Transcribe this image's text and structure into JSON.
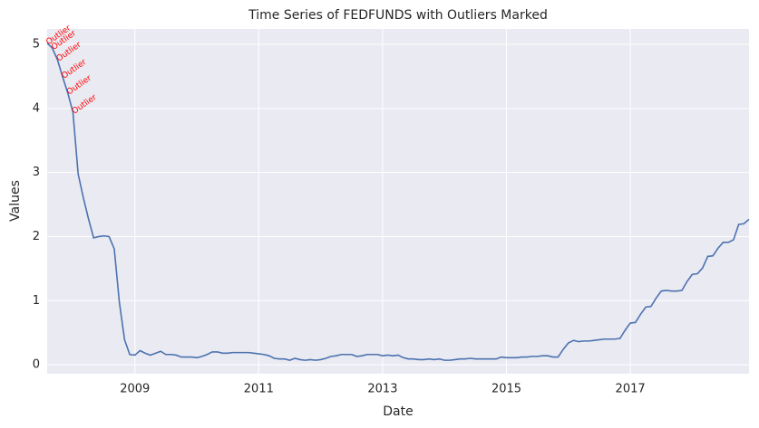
{
  "chart_data": {
    "type": "line",
    "title": "Time Series of FEDFUNDS with Outliers Marked",
    "x_label": "Date",
    "y_label": "Values",
    "x": [
      "2007-08",
      "2007-09",
      "2007-10",
      "2007-11",
      "2007-12",
      "2008-01",
      "2008-02",
      "2008-03",
      "2008-04",
      "2008-05",
      "2008-06",
      "2008-07",
      "2008-08",
      "2008-09",
      "2008-10",
      "2008-11",
      "2008-12",
      "2009-01",
      "2009-02",
      "2009-03",
      "2009-04",
      "2009-05",
      "2009-06",
      "2009-07",
      "2009-08",
      "2009-09",
      "2009-10",
      "2009-11",
      "2009-12",
      "2010-01",
      "2010-02",
      "2010-03",
      "2010-04",
      "2010-05",
      "2010-06",
      "2010-07",
      "2010-08",
      "2010-09",
      "2010-10",
      "2010-11",
      "2010-12",
      "2011-01",
      "2011-02",
      "2011-03",
      "2011-04",
      "2011-05",
      "2011-06",
      "2011-07",
      "2011-08",
      "2011-09",
      "2011-10",
      "2011-11",
      "2011-12",
      "2012-01",
      "2012-02",
      "2012-03",
      "2012-04",
      "2012-05",
      "2012-06",
      "2012-07",
      "2012-08",
      "2012-09",
      "2012-10",
      "2012-11",
      "2012-12",
      "2013-01",
      "2013-02",
      "2013-03",
      "2013-04",
      "2013-05",
      "2013-06",
      "2013-07",
      "2013-08",
      "2013-09",
      "2013-10",
      "2013-11",
      "2013-12",
      "2014-01",
      "2014-02",
      "2014-03",
      "2014-04",
      "2014-05",
      "2014-06",
      "2014-07",
      "2014-08",
      "2014-09",
      "2014-10",
      "2014-11",
      "2014-12",
      "2015-01",
      "2015-02",
      "2015-03",
      "2015-04",
      "2015-05",
      "2015-06",
      "2015-07",
      "2015-08",
      "2015-09",
      "2015-10",
      "2015-11",
      "2015-12",
      "2016-01",
      "2016-02",
      "2016-03",
      "2016-04",
      "2016-05",
      "2016-06",
      "2016-07",
      "2016-08",
      "2016-09",
      "2016-10",
      "2016-11",
      "2016-12",
      "2017-01",
      "2017-02",
      "2017-03",
      "2017-04",
      "2017-05",
      "2017-06",
      "2017-07",
      "2017-08",
      "2017-09",
      "2017-10",
      "2017-11",
      "2017-12",
      "2018-01",
      "2018-02",
      "2018-03",
      "2018-04",
      "2018-05",
      "2018-06",
      "2018-07",
      "2018-08",
      "2018-09",
      "2018-10",
      "2018-11",
      "2018-12"
    ],
    "series": [
      {
        "name": "FEDFUNDS",
        "color": "#4c72b0",
        "values": [
          5.02,
          4.94,
          4.76,
          4.49,
          4.24,
          3.94,
          2.98,
          2.61,
          2.28,
          1.98,
          2.0,
          2.01,
          2.0,
          1.81,
          0.97,
          0.39,
          0.16,
          0.15,
          0.22,
          0.18,
          0.15,
          0.18,
          0.21,
          0.16,
          0.16,
          0.15,
          0.12,
          0.12,
          0.12,
          0.11,
          0.13,
          0.16,
          0.2,
          0.2,
          0.18,
          0.18,
          0.19,
          0.19,
          0.19,
          0.19,
          0.18,
          0.17,
          0.16,
          0.14,
          0.1,
          0.09,
          0.09,
          0.07,
          0.1,
          0.08,
          0.07,
          0.08,
          0.07,
          0.08,
          0.1,
          0.13,
          0.14,
          0.16,
          0.16,
          0.16,
          0.13,
          0.14,
          0.16,
          0.16,
          0.16,
          0.14,
          0.15,
          0.14,
          0.15,
          0.11,
          0.09,
          0.09,
          0.08,
          0.08,
          0.09,
          0.08,
          0.09,
          0.07,
          0.07,
          0.08,
          0.09,
          0.09,
          0.1,
          0.09,
          0.09,
          0.09,
          0.09,
          0.09,
          0.12,
          0.11,
          0.11,
          0.11,
          0.12,
          0.12,
          0.13,
          0.13,
          0.14,
          0.14,
          0.12,
          0.12,
          0.24,
          0.34,
          0.38,
          0.36,
          0.37,
          0.37,
          0.38,
          0.39,
          0.4,
          0.4,
          0.4,
          0.41,
          0.54,
          0.65,
          0.66,
          0.79,
          0.9,
          0.91,
          1.04,
          1.15,
          1.16,
          1.15,
          1.15,
          1.16,
          1.3,
          1.41,
          1.42,
          1.51,
          1.69,
          1.7,
          1.82,
          1.91,
          1.91,
          1.95,
          2.19,
          2.2,
          2.27
        ]
      }
    ],
    "annotations": [
      {
        "text": "Outlier",
        "x": "2007-08",
        "y": 5.02
      },
      {
        "text": "Outlier",
        "x": "2007-09",
        "y": 4.94
      },
      {
        "text": "Outlier",
        "x": "2007-10",
        "y": 4.76
      },
      {
        "text": "Outlier",
        "x": "2007-11",
        "y": 4.49
      },
      {
        "text": "Outlier",
        "x": "2007-12",
        "y": 4.24
      },
      {
        "text": "Outlier",
        "x": "2008-01",
        "y": 3.94
      }
    ],
    "annotation_color": "red",
    "xlim": [
      "2007-08",
      "2018-12"
    ],
    "xticks": [
      {
        "value": "2009-01",
        "label": "2009"
      },
      {
        "value": "2011-01",
        "label": "2011"
      },
      {
        "value": "2013-01",
        "label": "2013"
      },
      {
        "value": "2015-01",
        "label": "2015"
      },
      {
        "value": "2017-01",
        "label": "2017"
      }
    ],
    "ylim": [
      -0.14,
      5.24
    ],
    "yticks": [
      0,
      1,
      2,
      3,
      4,
      5
    ],
    "grid": true
  }
}
